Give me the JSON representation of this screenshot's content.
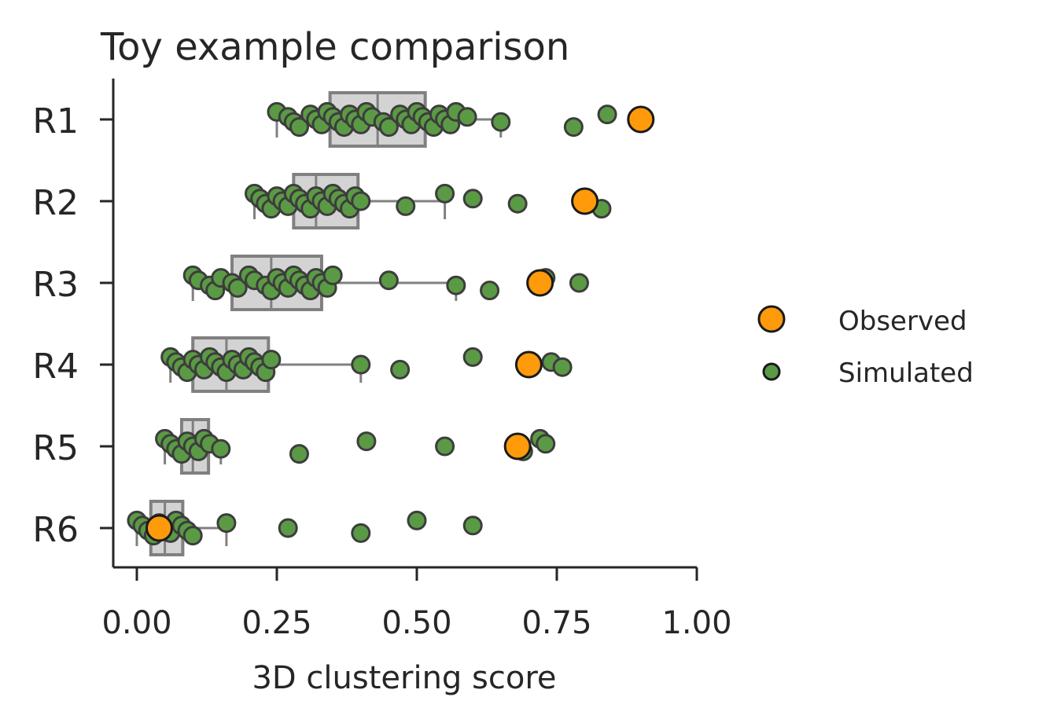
{
  "colors": {
    "observed": "#ff9a0b",
    "simulated": "#5b9a45",
    "box_fill": "#d3d3d3",
    "box_edge": "#808080",
    "axis": "#262626",
    "text": "#262626"
  },
  "chart_data": {
    "type": "box-strip",
    "title": "Toy example comparison",
    "xlabel": "3D clustering score",
    "ylabel": "",
    "xlim": [
      0,
      1
    ],
    "xticks": [
      "0.00",
      "0.25",
      "0.50",
      "0.75",
      "1.00"
    ],
    "xtick_values": [
      0,
      0.25,
      0.5,
      0.75,
      1.0
    ],
    "categories": [
      "R1",
      "R2",
      "R3",
      "R4",
      "R5",
      "R6"
    ],
    "legend": {
      "placement": "right",
      "entries": [
        "Observed",
        "Simulated"
      ]
    },
    "grid": false,
    "boxes": [
      {
        "category": "R1",
        "whisker_low": 0.25,
        "q1": 0.345,
        "median": 0.43,
        "q3": 0.515,
        "whisker_high": 0.65
      },
      {
        "category": "R2",
        "whisker_low": 0.21,
        "q1": 0.28,
        "median": 0.32,
        "q3": 0.395,
        "whisker_high": 0.55
      },
      {
        "category": "R3",
        "whisker_low": 0.1,
        "q1": 0.17,
        "median": 0.24,
        "q3": 0.33,
        "whisker_high": 0.57
      },
      {
        "category": "R4",
        "whisker_low": 0.06,
        "q1": 0.1,
        "median": 0.16,
        "q3": 0.235,
        "whisker_high": 0.4
      },
      {
        "category": "R5",
        "whisker_low": 0.05,
        "q1": 0.08,
        "median": 0.1,
        "q3": 0.128,
        "whisker_high": 0.15
      },
      {
        "category": "R6",
        "whisker_low": 0.0,
        "q1": 0.025,
        "median": 0.05,
        "q3": 0.082,
        "whisker_high": 0.16
      }
    ],
    "series": [
      {
        "name": "Simulated",
        "points": {
          "R1": [
            0.25,
            0.27,
            0.28,
            0.29,
            0.31,
            0.32,
            0.33,
            0.34,
            0.35,
            0.36,
            0.37,
            0.38,
            0.39,
            0.4,
            0.41,
            0.42,
            0.44,
            0.45,
            0.47,
            0.48,
            0.49,
            0.5,
            0.51,
            0.52,
            0.53,
            0.54,
            0.55,
            0.56,
            0.57,
            0.59,
            0.65,
            0.78,
            0.84
          ],
          "R2": [
            0.21,
            0.22,
            0.23,
            0.24,
            0.25,
            0.26,
            0.27,
            0.28,
            0.29,
            0.3,
            0.31,
            0.32,
            0.33,
            0.34,
            0.35,
            0.36,
            0.37,
            0.38,
            0.39,
            0.4,
            0.48,
            0.55,
            0.6,
            0.68,
            0.83
          ],
          "R3": [
            0.1,
            0.11,
            0.13,
            0.14,
            0.15,
            0.17,
            0.18,
            0.2,
            0.21,
            0.23,
            0.24,
            0.25,
            0.26,
            0.27,
            0.28,
            0.29,
            0.3,
            0.31,
            0.32,
            0.33,
            0.34,
            0.35,
            0.45,
            0.57,
            0.63,
            0.73,
            0.79
          ],
          "R4": [
            0.06,
            0.07,
            0.08,
            0.09,
            0.1,
            0.11,
            0.12,
            0.13,
            0.14,
            0.15,
            0.16,
            0.17,
            0.18,
            0.19,
            0.2,
            0.21,
            0.22,
            0.23,
            0.24,
            0.4,
            0.47,
            0.6,
            0.74,
            0.76
          ],
          "R5": [
            0.05,
            0.06,
            0.07,
            0.08,
            0.09,
            0.1,
            0.11,
            0.12,
            0.13,
            0.15,
            0.29,
            0.41,
            0.55,
            0.69,
            0.72,
            0.73
          ],
          "R6": [
            0.0,
            0.01,
            0.02,
            0.03,
            0.04,
            0.05,
            0.06,
            0.07,
            0.08,
            0.09,
            0.1,
            0.16,
            0.27,
            0.4,
            0.5,
            0.6
          ]
        }
      },
      {
        "name": "Observed",
        "points": {
          "R1": [
            0.9
          ],
          "R2": [
            0.8
          ],
          "R3": [
            0.72
          ],
          "R4": [
            0.7
          ],
          "R5": [
            0.68
          ],
          "R6": [
            0.04
          ]
        }
      }
    ]
  }
}
